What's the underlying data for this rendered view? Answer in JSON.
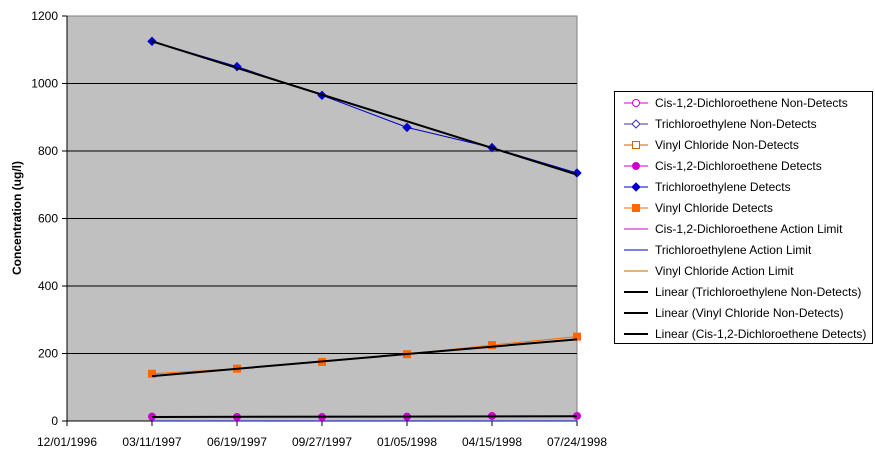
{
  "chart_data": {
    "type": "line",
    "title": "",
    "xlabel": "",
    "ylabel": "Concentration  (ug/l)",
    "ylim": [
      0,
      1200
    ],
    "yticks": [
      "0",
      "200",
      "400",
      "600",
      "800",
      "1000",
      "1200"
    ],
    "xlim": [
      "1996-12-01",
      "1998-07-24"
    ],
    "xticks": [
      "12/01/1996",
      "03/11/1997",
      "06/19/1997",
      "09/27/1997",
      "01/05/1998",
      "04/15/1998",
      "07/24/1998"
    ],
    "grid": "horizontal",
    "legend_position": "right",
    "series": [
      {
        "name": "Cis-1,2-Dichloroethene Non-Detects",
        "color": "#cc00cc",
        "marker": "open-circle",
        "line": false,
        "x": [],
        "y": []
      },
      {
        "name": "Trichloroethylene Non-Detects",
        "color": "#3333aa",
        "marker": "open-diamond",
        "line": false,
        "x": [],
        "y": []
      },
      {
        "name": "Vinyl Chloride Non-Detects",
        "color": "#cc6600",
        "marker": "open-square",
        "line": false,
        "x": [],
        "y": []
      },
      {
        "name": "Cis-1,2-Dichloroethene Detects",
        "color": "#cc00cc",
        "marker": "circle",
        "line": true,
        "x": [
          "1997-03-11",
          "1997-06-19",
          "1997-09-27",
          "1998-01-05",
          "1998-04-15",
          "1998-07-24"
        ],
        "y": [
          13,
          12,
          12,
          13,
          15,
          15
        ]
      },
      {
        "name": "Trichloroethylene Detects",
        "color": "#0000cc",
        "marker": "diamond",
        "line": true,
        "x": [
          "1997-03-11",
          "1997-06-19",
          "1997-09-27",
          "1998-01-05",
          "1998-04-15",
          "1998-07-24"
        ],
        "y": [
          1125,
          1050,
          965,
          870,
          810,
          735
        ]
      },
      {
        "name": "Vinyl Chloride Detects",
        "color": "#ff6600",
        "marker": "square",
        "line": true,
        "x": [
          "1997-03-11",
          "1997-06-19",
          "1997-09-27",
          "1998-01-05",
          "1998-04-15",
          "1998-07-24"
        ],
        "y": [
          140,
          155,
          175,
          198,
          225,
          250
        ]
      },
      {
        "name": "Cis-1,2-Dichloroethene Action Limit",
        "color": "#cc00cc",
        "marker": "none",
        "line": true,
        "x": [
          "1997-03-11",
          "1998-07-24"
        ],
        "y": [
          0,
          0
        ]
      },
      {
        "name": "Trichloroethylene Action Limit",
        "color": "#0000cc",
        "marker": "none",
        "line": true,
        "x": [
          "1997-03-11",
          "1998-07-24"
        ],
        "y": [
          0,
          0
        ]
      },
      {
        "name": "Vinyl Chloride Action Limit",
        "color": "#cc6600",
        "marker": "none",
        "line": true,
        "x": [],
        "y": []
      },
      {
        "name": "Linear (Trichloroethylene Non-Detects)",
        "color": "#000000",
        "marker": "none",
        "line": true,
        "width": 2,
        "x": [
          "1997-03-11",
          "1998-07-24"
        ],
        "y": [
          1125,
          730
        ]
      },
      {
        "name": "Linear (Vinyl Chloride Non-Detects)",
        "color": "#000000",
        "marker": "none",
        "line": true,
        "width": 2,
        "x": [
          "1997-03-11",
          "1998-07-24"
        ],
        "y": [
          133,
          242
        ]
      },
      {
        "name": "Linear (Cis-1,2-Dichloroethene Detects)",
        "color": "#000000",
        "marker": "none",
        "line": true,
        "width": 2,
        "x": [
          "1997-03-11",
          "1998-07-24"
        ],
        "y": [
          12,
          14
        ]
      }
    ]
  }
}
